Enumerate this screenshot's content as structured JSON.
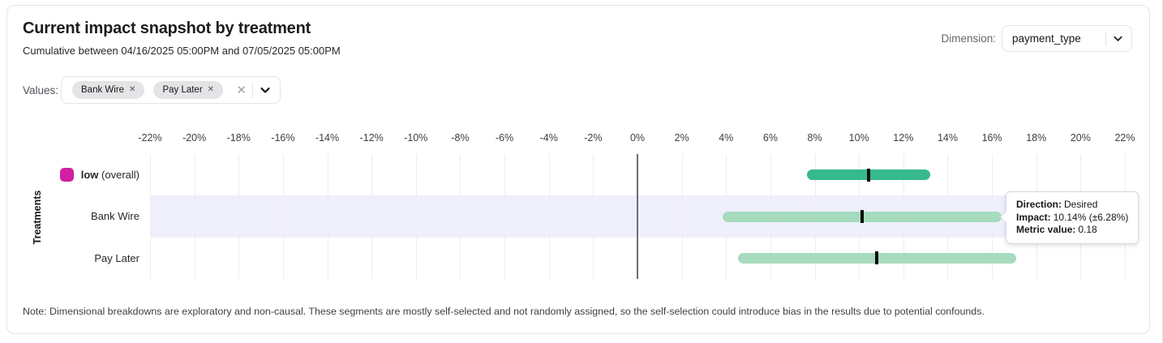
{
  "header": {
    "title": "Current impact snapshot by treatment",
    "subtitle": "Cumulative between 04/16/2025 05:00PM and 07/05/2025 05:00PM"
  },
  "dimension": {
    "label": "Dimension:",
    "value": "payment_type"
  },
  "filters": {
    "label": "Values:",
    "chips": [
      {
        "label": "Bank Wire",
        "remove_icon": "✕"
      },
      {
        "label": "Pay Later",
        "remove_icon": "✕"
      }
    ],
    "clear_icon": "✕"
  },
  "chart_data": {
    "type": "bar",
    "subtype": "horizontal-confidence-interval",
    "ylabel": "Treatments",
    "xlim": [
      -22,
      22
    ],
    "tick_values": [
      -22,
      -20,
      -18,
      -16,
      -14,
      -12,
      -10,
      -8,
      -6,
      -4,
      -2,
      0,
      2,
      4,
      6,
      8,
      10,
      12,
      14,
      16,
      18,
      20,
      22
    ],
    "tick_suffix": "%",
    "grid": true,
    "colors": {
      "overall_bar": "#36ba8c",
      "segment_bar": "#a6dbbe",
      "marker": "#0c0c0c",
      "legend_swatch": "#d01fa0",
      "highlight_band": "#eeeffb"
    },
    "rows": [
      {
        "label": "low",
        "label_suffix": " (overall)",
        "swatch_color": "#d01fa0",
        "color": "#36ba8c",
        "low": 7.66,
        "high": 13.21,
        "point": 10.43,
        "highlighted": false
      },
      {
        "label": "Bank Wire",
        "color": "#a6dbbe",
        "low": 3.86,
        "high": 16.42,
        "point": 10.14,
        "highlighted": true
      },
      {
        "label": "Pay Later",
        "color": "#a6dbbe",
        "low": 4.54,
        "high": 17.08,
        "point": 10.81,
        "highlighted": false
      }
    ]
  },
  "tooltip": {
    "direction_label": "Direction:",
    "direction_value": "Desired",
    "impact_label": "Impact:",
    "impact_value": "10.14% (±6.28%)",
    "metric_label": "Metric value:",
    "metric_value": "0.18"
  },
  "note": "Note: Dimensional breakdowns are exploratory and non-causal. These segments are mostly self-selected and not randomly assigned, so the self-selection could introduce bias in the results due to potential confounds."
}
